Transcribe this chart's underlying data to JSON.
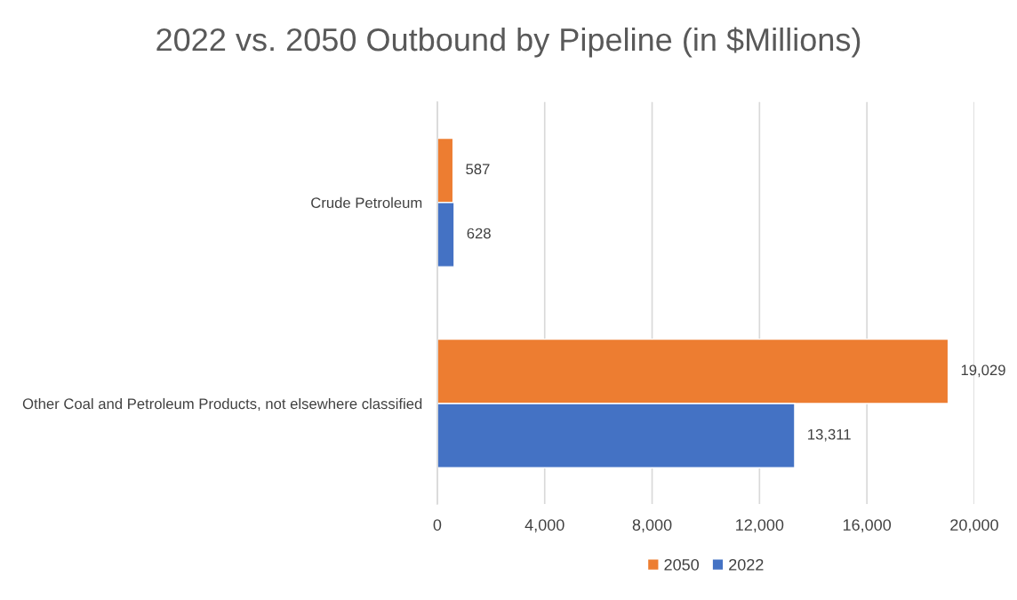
{
  "chart_data": {
    "type": "bar",
    "orientation": "horizontal",
    "title": "2022 vs. 2050 Outbound by Pipeline (in $Millions)",
    "categories": [
      "Crude Petroleum",
      "Other Coal and Petroleum Products, not elsewhere classified"
    ],
    "series": [
      {
        "name": "2050",
        "color": "#ed7d31",
        "values": [
          587,
          19029
        ],
        "value_labels": [
          "587",
          "19,029"
        ]
      },
      {
        "name": "2022",
        "color": "#4472c4",
        "values": [
          628,
          13311
        ],
        "value_labels": [
          "628",
          "13,311"
        ]
      }
    ],
    "xlim": [
      0,
      20000
    ],
    "xticks": [
      0,
      {
        "value": 4000,
        "label": "4,000"
      },
      {
        "value": 8000,
        "label": "8,000"
      },
      {
        "value": 12000,
        "label": "12,000"
      },
      {
        "value": 16000,
        "label": "16,000"
      },
      {
        "value": 20000,
        "label": "20,000"
      }
    ],
    "grid": "x",
    "legend": "bottom"
  }
}
